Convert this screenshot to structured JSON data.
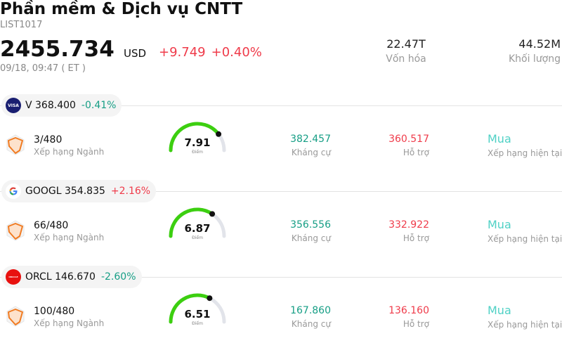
{
  "header": {
    "title": "Phần mềm & Dịch vụ CNTT",
    "code": "LIST1017",
    "price": "2455.734",
    "currency": "USD",
    "change": "+9.749",
    "change_pct": "+0.40%",
    "timestamp": "09/18, 09:47  ( ET )",
    "market_cap_value": "22.47T",
    "market_cap_label": "Vốn hóa",
    "volume_value": "44.52M",
    "volume_label": "Khối lượng"
  },
  "stocks": [
    {
      "symbol": "V",
      "price": "368.400",
      "change_pct": "-0.41%",
      "direction": "down",
      "logo_icon": "visa-logo-icon",
      "logo_text": "VISA",
      "logo_color": "#1a1f71",
      "rank": "3/480",
      "rank_label": "Xếp hạng Ngành",
      "score": "7.91",
      "score_value": 7.91,
      "score_label": "Điểm",
      "resistance": "382.457",
      "resistance_label": "Kháng cự",
      "support": "360.517",
      "support_label": "Hỗ trợ",
      "rating": "Mua",
      "rating_label": "Xếp hạng hiện tại"
    },
    {
      "symbol": "GOOGL",
      "price": "354.835",
      "change_pct": "+2.16%",
      "direction": "up",
      "logo_icon": "google-logo-icon",
      "logo_text": "G",
      "logo_color": "#ffffff",
      "rank": "66/480",
      "rank_label": "Xếp hạng Ngành",
      "score": "6.87",
      "score_value": 6.87,
      "score_label": "Điểm",
      "resistance": "356.556",
      "resistance_label": "Kháng cự",
      "support": "332.922",
      "support_label": "Hỗ trợ",
      "rating": "Mua",
      "rating_label": "Xếp hạng hiện tại"
    },
    {
      "symbol": "ORCL",
      "price": "146.670",
      "change_pct": "-2.60%",
      "direction": "down",
      "logo_icon": "oracle-logo-icon",
      "logo_text": "ORACLE",
      "logo_color": "#e8110f",
      "rank": "100/480",
      "rank_label": "Xếp hạng Ngành",
      "score": "6.51",
      "score_value": 6.51,
      "score_label": "Điểm",
      "resistance": "167.860",
      "resistance_label": "Kháng cự",
      "support": "136.160",
      "support_label": "Hỗ trợ",
      "rating": "Mua",
      "rating_label": "Xếp hạng hiện tại"
    }
  ]
}
